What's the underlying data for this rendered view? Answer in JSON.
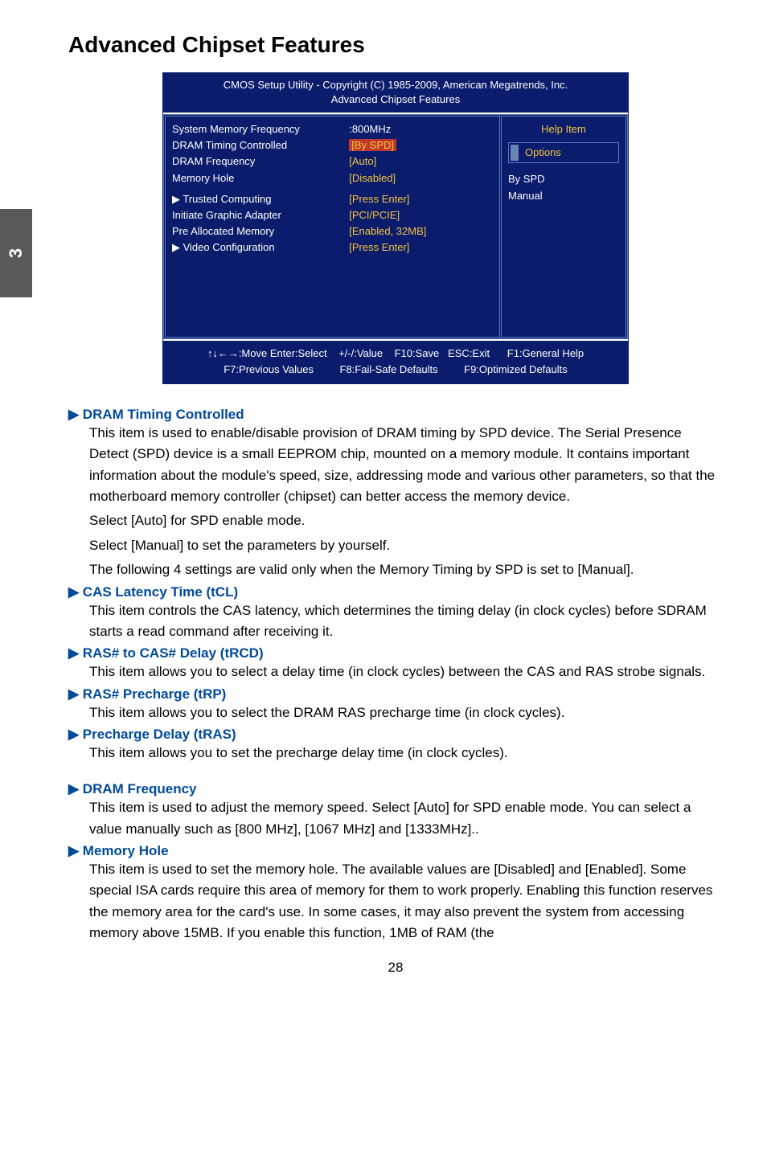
{
  "sideTab": "3",
  "title": "Advanced Chipset Features",
  "bios": {
    "headerLine1": "CMOS Setup Utility - Copyright (C) 1985-2009, American Megatrends, Inc.",
    "headerLine2": "Advanced Chipset Features",
    "leftLabels": {
      "l1": "System Memory Frequency",
      "l2": "DRAM Timing Controlled",
      "l3": "DRAM Frequency",
      "l4": "Memory Hole",
      "l5": "▶ Trusted Computing",
      "l6": "Initiate Graphic Adapter",
      "l7": "Pre Allocated Memory",
      "l8": "▶ Video Configuration"
    },
    "leftValues": {
      "v1": ":800MHz",
      "v2": "[By SPD]",
      "v3": "[Auto]",
      "v4": "[Disabled]",
      "v5": "[Press Enter]",
      "v6": "[PCI/PCIE]",
      "v7": "[Enabled, 32MB]",
      "v8": "[Press Enter]"
    },
    "right": {
      "helpTitle": "Help Item",
      "options": "Options",
      "opt1": "By SPD",
      "opt2": "Manual"
    },
    "footer": {
      "row1a": "↑↓←→:Move  Enter:Select",
      "row1b": "+/-/:Value",
      "row1c": "F10:Save",
      "row1d": "ESC:Exit",
      "row1e": "F1:General Help",
      "row2a": "F7:Previous Values",
      "row2b": "F8:Fail-Safe Defaults",
      "row2c": "F9:Optimized Defaults"
    }
  },
  "items": [
    {
      "head": "▶ DRAM Timing Controlled",
      "body": [
        "This item is used to enable/disable provision of DRAM timing by SPD device. The Serial Presence Detect (SPD) device is a small EEPROM chip, mounted on a memory module. It contains important information about the module's speed, size, addressing mode and various other parameters, so that the motherboard memory controller (chipset) can better access the memory device.",
        "Select [Auto] for SPD enable mode.",
        "Select [Manual] to set the parameters by yourself.",
        "The following 4 settings are valid only when the Memory Timing by SPD is set to [Manual]."
      ]
    },
    {
      "head": "▶ CAS Latency Time (tCL)",
      "body": [
        "This item controls the CAS latency, which determines the timing delay (in clock cycles) before SDRAM starts a read command after receiving it."
      ]
    },
    {
      "head": "▶ RAS# to CAS# Delay (tRCD)",
      "body": [
        "This item allows you to select a delay time (in clock cycles) between the CAS and RAS strobe signals."
      ]
    },
    {
      "head": "▶ RAS# Precharge (tRP)",
      "body": [
        "This item allows you to select the DRAM RAS precharge time (in clock cycles)."
      ]
    },
    {
      "head": "▶ Precharge Delay (tRAS)",
      "body": [
        "This item allows you to set the precharge delay time (in clock cycles)."
      ]
    },
    {
      "spacer": true
    },
    {
      "head": "▶ DRAM Frequency",
      "body": [
        "This item is used to adjust the memory speed. Select [Auto] for SPD enable mode. You can select a value manually such as [800 MHz], [1067 MHz] and [1333MHz].."
      ]
    },
    {
      "head": "▶ Memory Hole",
      "body": [
        "This item is used to set the memory hole. The available values are [Disabled] and [Enabled]. Some special ISA cards require this area of memory for them to work properly. Enabling this function reserves the memory area for the card's use. In some cases, it may also prevent the system from accessing memory above 15MB. If you enable this function, 1MB of RAM (the"
      ]
    }
  ],
  "pageNumber": "28"
}
